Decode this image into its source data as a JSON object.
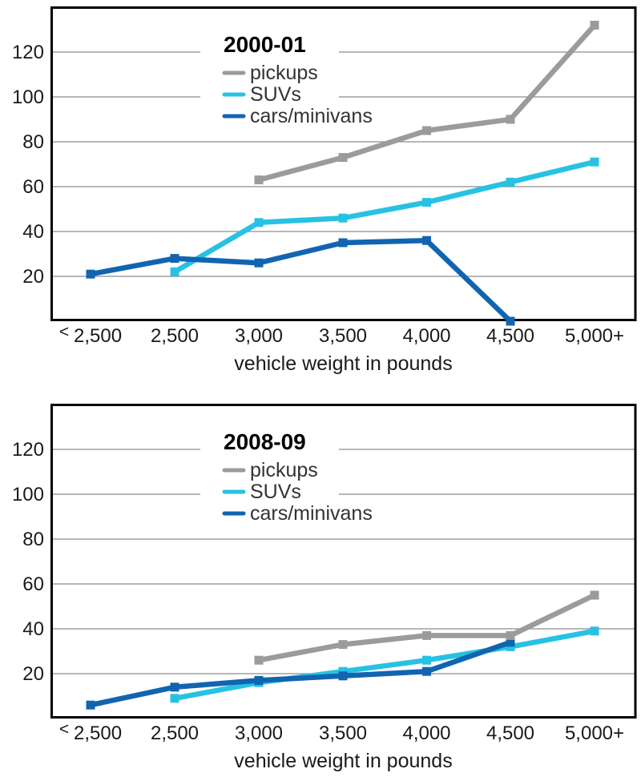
{
  "page": {
    "background": "#ffffff",
    "description": "Two stacked line charts comparing fatality counts by vehicle weight for 2000-01 and 2008-09"
  },
  "colors": {
    "pickups": "#9b9b9b",
    "suvs": "#27c2e2",
    "cars_minivans": "#1165b0",
    "grid": "#8c8c8c",
    "plot_border": "#000000",
    "tick_text": "#1a1a1a",
    "legend_text": "#333333",
    "legend_background": "#ffffff"
  },
  "chart_data": [
    {
      "type": "line",
      "title": "2000-01",
      "categories": [
        "< 2,500",
        "2,500",
        "3,000",
        "3,500",
        "4,000",
        "4,500",
        "5,000+"
      ],
      "xlabel": "vehicle weight in pounds",
      "ylabel": "",
      "ylim": [
        0,
        140
      ],
      "yticks": [
        20,
        40,
        60,
        80,
        100,
        120
      ],
      "grid": true,
      "marker": "square",
      "legend_position": "top-center-inside",
      "series": [
        {
          "name": "pickups",
          "color": "#9b9b9b",
          "values": [
            null,
            null,
            63,
            73,
            85,
            90,
            132
          ]
        },
        {
          "name": "SUVs",
          "color": "#27c2e2",
          "values": [
            null,
            22,
            44,
            46,
            53,
            62,
            71
          ]
        },
        {
          "name": "cars/minivans",
          "color": "#1165b0",
          "values": [
            21,
            28,
            26,
            35,
            36,
            0,
            null
          ]
        }
      ]
    },
    {
      "type": "line",
      "title": "2008-09",
      "categories": [
        "< 2,500",
        "2,500",
        "3,000",
        "3,500",
        "4,000",
        "4,500",
        "5,000+"
      ],
      "xlabel": "vehicle weight in pounds",
      "ylabel": "",
      "ylim": [
        0,
        140
      ],
      "yticks": [
        20,
        40,
        60,
        80,
        100,
        120
      ],
      "grid": true,
      "marker": "square",
      "legend_position": "top-center-inside",
      "series": [
        {
          "name": "pickups",
          "color": "#9b9b9b",
          "values": [
            null,
            null,
            26,
            33,
            37,
            37,
            55
          ]
        },
        {
          "name": "SUVs",
          "color": "#27c2e2",
          "values": [
            null,
            9,
            16,
            21,
            26,
            32,
            39
          ]
        },
        {
          "name": "cars/minivans",
          "color": "#1165b0",
          "values": [
            6,
            14,
            17,
            19,
            21,
            34,
            null
          ]
        }
      ]
    }
  ]
}
